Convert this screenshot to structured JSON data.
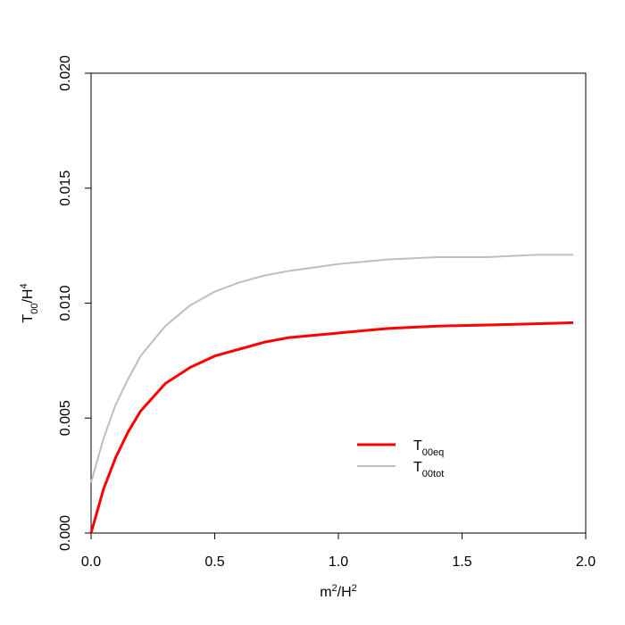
{
  "chart_data": {
    "type": "line",
    "xlabel": [
      {
        "text": "m"
      },
      {
        "text": "2",
        "shift": "super"
      },
      {
        "text": "/H"
      },
      {
        "text": "2",
        "shift": "super"
      }
    ],
    "ylabel": [
      {
        "text": "T"
      },
      {
        "text": "00",
        "shift": "sub"
      },
      {
        "text": "/H"
      },
      {
        "text": "4",
        "shift": "super"
      }
    ],
    "x": [
      0,
      0.05,
      0.1,
      0.15,
      0.2,
      0.3,
      0.4,
      0.5,
      0.6,
      0.7,
      0.8,
      1.0,
      1.2,
      1.4,
      1.6,
      1.8,
      1.95
    ],
    "series": [
      {
        "name": [
          {
            "text": "T"
          },
          {
            "text": "00eq",
            "shift": "sub"
          }
        ],
        "color": "#ff0000",
        "width": 3,
        "values": [
          0,
          0.0019,
          0.0033,
          0.0044,
          0.0053,
          0.0065,
          0.0072,
          0.0077,
          0.008,
          0.0083,
          0.0085,
          0.0087,
          0.0089,
          0.009,
          0.00905,
          0.0091,
          0.00915
        ]
      },
      {
        "name": [
          {
            "text": "T"
          },
          {
            "text": "00tot",
            "shift": "sub"
          }
        ],
        "color": "#bebebe",
        "width": 2,
        "values": [
          0.0022,
          0.0041,
          0.0056,
          0.0067,
          0.0077,
          0.009,
          0.0099,
          0.0105,
          0.0109,
          0.0112,
          0.0114,
          0.0117,
          0.0119,
          0.012,
          0.012,
          0.0121,
          0.0121
        ]
      }
    ],
    "xlim": [
      0,
      2
    ],
    "xticks": [
      {
        "value": 0,
        "label": "0.0"
      },
      0.5,
      {
        "value": 1,
        "label": "1.0"
      },
      1.5,
      {
        "value": 2,
        "label": "2.0"
      }
    ],
    "ylim": [
      0,
      0.02
    ],
    "yticks": [
      {
        "value": 0,
        "label": "0.000"
      },
      0.005,
      {
        "value": 0.01,
        "label": "0.010"
      },
      0.015,
      {
        "value": 0.02,
        "label": "0.020"
      }
    ],
    "legend": "bottom-right"
  }
}
